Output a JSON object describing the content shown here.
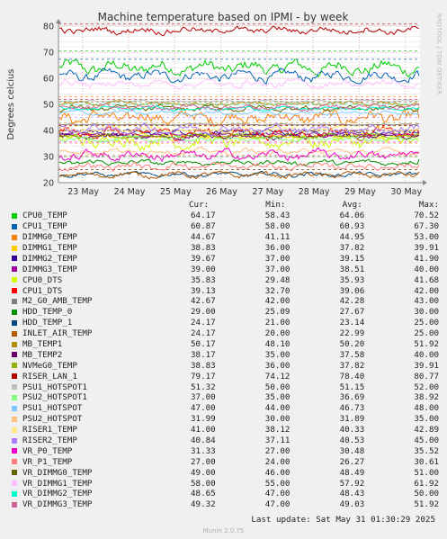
{
  "title": "Machine temperature based on IPMI - by week",
  "ylabel": "Degrees celcius",
  "watermark": "RRDTOOL / TOBI OETIKER",
  "chart_data": {
    "type": "line",
    "title": "Machine temperature based on IPMI - by week",
    "ylabel": "Degrees celcius",
    "ylim": [
      20,
      80
    ],
    "yticks": [
      "20",
      "30",
      "40",
      "50",
      "60",
      "70",
      "80"
    ],
    "xticks": [
      "23 May",
      "24 May",
      "25 May",
      "26 May",
      "27 May",
      "28 May",
      "29 May",
      "30 May"
    ],
    "grid": true,
    "series": [
      {
        "name": "CPU0_TEMP",
        "color": "#00cc00",
        "cur": 64.17,
        "min": 58.43,
        "avg": 64.06,
        "max": 70.52
      },
      {
        "name": "CPU1_TEMP",
        "color": "#0066b3",
        "cur": 60.87,
        "min": 58.0,
        "avg": 60.93,
        "max": 67.3
      },
      {
        "name": "DIMMG0_TEMP",
        "color": "#ff8000",
        "cur": 44.67,
        "min": 41.11,
        "avg": 44.95,
        "max": 53.0
      },
      {
        "name": "DIMMG1_TEMP",
        "color": "#ffcc00",
        "cur": 38.83,
        "min": 36.0,
        "avg": 37.82,
        "max": 39.91
      },
      {
        "name": "DIMMG2_TEMP",
        "color": "#330099",
        "cur": 39.67,
        "min": 37.0,
        "avg": 39.15,
        "max": 41.9
      },
      {
        "name": "DIMMG3_TEMP",
        "color": "#990099",
        "cur": 39.0,
        "min": 37.0,
        "avg": 38.51,
        "max": 40.0
      },
      {
        "name": "CPU0_DTS",
        "color": "#ccff00",
        "cur": 35.83,
        "min": 29.48,
        "avg": 35.93,
        "max": 41.68
      },
      {
        "name": "CPU1_DTS",
        "color": "#ff0000",
        "cur": 39.13,
        "min": 32.7,
        "avg": 39.06,
        "max": 42.0
      },
      {
        "name": "M2_G0_AMB_TEMP",
        "color": "#808080",
        "cur": 42.67,
        "min": 42.0,
        "avg": 42.28,
        "max": 43.0
      },
      {
        "name": "HDD_TEMP_0",
        "color": "#008f00",
        "cur": 29.0,
        "min": 25.09,
        "avg": 27.67,
        "max": 30.0
      },
      {
        "name": "HDD_TEMP_1",
        "color": "#00487d",
        "cur": 24.17,
        "min": 21.0,
        "avg": 23.14,
        "max": 25.0
      },
      {
        "name": "INLET_AIR_TEMP",
        "color": "#b35a00",
        "cur": 24.17,
        "min": 20.0,
        "avg": 22.99,
        "max": 25.0
      },
      {
        "name": "MB_TEMP1",
        "color": "#b38f00",
        "cur": 50.17,
        "min": 48.1,
        "avg": 50.2,
        "max": 51.92
      },
      {
        "name": "MB_TEMP2",
        "color": "#6b006b",
        "cur": 38.17,
        "min": 35.0,
        "avg": 37.58,
        "max": 40.0
      },
      {
        "name": "NVMeG0_TEMP",
        "color": "#8fb300",
        "cur": 38.83,
        "min": 36.0,
        "avg": 37.82,
        "max": 39.91
      },
      {
        "name": "RISER_LAN_1",
        "color": "#b30000",
        "cur": 79.17,
        "min": 74.12,
        "avg": 78.4,
        "max": 80.77
      },
      {
        "name": "PSU1_HOTSPOT1",
        "color": "#bebebe",
        "cur": 51.32,
        "min": 50.0,
        "avg": 51.15,
        "max": 52.0
      },
      {
        "name": "PSU2_HOTSPOT1",
        "color": "#80ff80",
        "cur": 37.0,
        "min": 35.0,
        "avg": 36.69,
        "max": 38.92
      },
      {
        "name": "PSU1_HOTSPOT",
        "color": "#80c9ff",
        "cur": 47.0,
        "min": 44.0,
        "avg": 46.73,
        "max": 48.0
      },
      {
        "name": "PSU2_HOTSPOT",
        "color": "#ffc080",
        "cur": 31.99,
        "min": 30.0,
        "avg": 31.89,
        "max": 35.0
      },
      {
        "name": "RISER1_TEMP",
        "color": "#ffe680",
        "cur": 41.0,
        "min": 38.12,
        "avg": 40.33,
        "max": 42.89
      },
      {
        "name": "RISER2_TEMP",
        "color": "#aa80ff",
        "cur": 40.84,
        "min": 37.11,
        "avg": 40.53,
        "max": 45.0
      },
      {
        "name": "VR_P0_TEMP",
        "color": "#ee00cc",
        "cur": 31.33,
        "min": 27.0,
        "avg": 30.48,
        "max": 35.52
      },
      {
        "name": "VR_P1_TEMP",
        "color": "#ff8080",
        "cur": 27.0,
        "min": 24.0,
        "avg": 26.27,
        "max": 30.61
      },
      {
        "name": "VR_DIMMG0_TEMP",
        "color": "#666600",
        "cur": 49.0,
        "min": 46.0,
        "avg": 48.49,
        "max": 51.0
      },
      {
        "name": "VR_DIMMG1_TEMP",
        "color": "#ffbfff",
        "cur": 58.0,
        "min": 55.0,
        "avg": 57.92,
        "max": 61.92
      },
      {
        "name": "VR_DIMMG2_TEMP",
        "color": "#00ffcc",
        "cur": 48.65,
        "min": 47.0,
        "avg": 48.43,
        "max": 50.0
      },
      {
        "name": "VR_DIMMG3_TEMP",
        "color": "#cc6699",
        "cur": 49.32,
        "min": 47.0,
        "avg": 49.03,
        "max": 51.92
      }
    ]
  },
  "legend": {
    "headers": {
      "cur": "Cur:",
      "min": "Min:",
      "avg": "Avg:",
      "max": "Max:"
    },
    "rows": [
      {
        "name": "CPU0_TEMP",
        "cur": "64.17",
        "min": "58.43",
        "avg": "64.06",
        "max": "70.52"
      },
      {
        "name": "CPU1_TEMP",
        "cur": "60.87",
        "min": "58.00",
        "avg": "60.93",
        "max": "67.30"
      },
      {
        "name": "DIMMG0_TEMP",
        "cur": "44.67",
        "min": "41.11",
        "avg": "44.95",
        "max": "53.00"
      },
      {
        "name": "DIMMG1_TEMP",
        "cur": "38.83",
        "min": "36.00",
        "avg": "37.82",
        "max": "39.91"
      },
      {
        "name": "DIMMG2_TEMP",
        "cur": "39.67",
        "min": "37.00",
        "avg": "39.15",
        "max": "41.90"
      },
      {
        "name": "DIMMG3_TEMP",
        "cur": "39.00",
        "min": "37.00",
        "avg": "38.51",
        "max": "40.00"
      },
      {
        "name": "CPU0_DTS",
        "cur": "35.83",
        "min": "29.48",
        "avg": "35.93",
        "max": "41.68"
      },
      {
        "name": "CPU1_DTS",
        "cur": "39.13",
        "min": "32.70",
        "avg": "39.06",
        "max": "42.00"
      },
      {
        "name": "M2_G0_AMB_TEMP",
        "cur": "42.67",
        "min": "42.00",
        "avg": "42.28",
        "max": "43.00"
      },
      {
        "name": "HDD_TEMP_0",
        "cur": "29.00",
        "min": "25.09",
        "avg": "27.67",
        "max": "30.00"
      },
      {
        "name": "HDD_TEMP_1",
        "cur": "24.17",
        "min": "21.00",
        "avg": "23.14",
        "max": "25.00"
      },
      {
        "name": "INLET_AIR_TEMP",
        "cur": "24.17",
        "min": "20.00",
        "avg": "22.99",
        "max": "25.00"
      },
      {
        "name": "MB_TEMP1",
        "cur": "50.17",
        "min": "48.10",
        "avg": "50.20",
        "max": "51.92"
      },
      {
        "name": "MB_TEMP2",
        "cur": "38.17",
        "min": "35.00",
        "avg": "37.58",
        "max": "40.00"
      },
      {
        "name": "NVMeG0_TEMP",
        "cur": "38.83",
        "min": "36.00",
        "avg": "37.82",
        "max": "39.91"
      },
      {
        "name": "RISER_LAN_1",
        "cur": "79.17",
        "min": "74.12",
        "avg": "78.40",
        "max": "80.77"
      },
      {
        "name": "PSU1_HOTSPOT1",
        "cur": "51.32",
        "min": "50.00",
        "avg": "51.15",
        "max": "52.00"
      },
      {
        "name": "PSU2_HOTSPOT1",
        "cur": "37.00",
        "min": "35.00",
        "avg": "36.69",
        "max": "38.92"
      },
      {
        "name": "PSU1_HOTSPOT",
        "cur": "47.00",
        "min": "44.00",
        "avg": "46.73",
        "max": "48.00"
      },
      {
        "name": "PSU2_HOTSPOT",
        "cur": "31.99",
        "min": "30.00",
        "avg": "31.89",
        "max": "35.00"
      },
      {
        "name": "RISER1_TEMP",
        "cur": "41.00",
        "min": "38.12",
        "avg": "40.33",
        "max": "42.89"
      },
      {
        "name": "RISER2_TEMP",
        "cur": "40.84",
        "min": "37.11",
        "avg": "40.53",
        "max": "45.00"
      },
      {
        "name": "VR_P0_TEMP",
        "cur": "31.33",
        "min": "27.00",
        "avg": "30.48",
        "max": "35.52"
      },
      {
        "name": "VR_P1_TEMP",
        "cur": "27.00",
        "min": "24.00",
        "avg": "26.27",
        "max": "30.61"
      },
      {
        "name": "VR_DIMMG0_TEMP",
        "cur": "49.00",
        "min": "46.00",
        "avg": "48.49",
        "max": "51.00"
      },
      {
        "name": "VR_DIMMG1_TEMP",
        "cur": "58.00",
        "min": "55.00",
        "avg": "57.92",
        "max": "61.92"
      },
      {
        "name": "VR_DIMMG2_TEMP",
        "cur": "48.65",
        "min": "47.00",
        "avg": "48.43",
        "max": "50.00"
      },
      {
        "name": "VR_DIMMG3_TEMP",
        "cur": "49.32",
        "min": "47.00",
        "avg": "49.03",
        "max": "51.92"
      }
    ]
  },
  "footer": {
    "last_update": "Last update: Sat May 31 01:30:29 2025",
    "version": "Munin 2.0.75"
  }
}
